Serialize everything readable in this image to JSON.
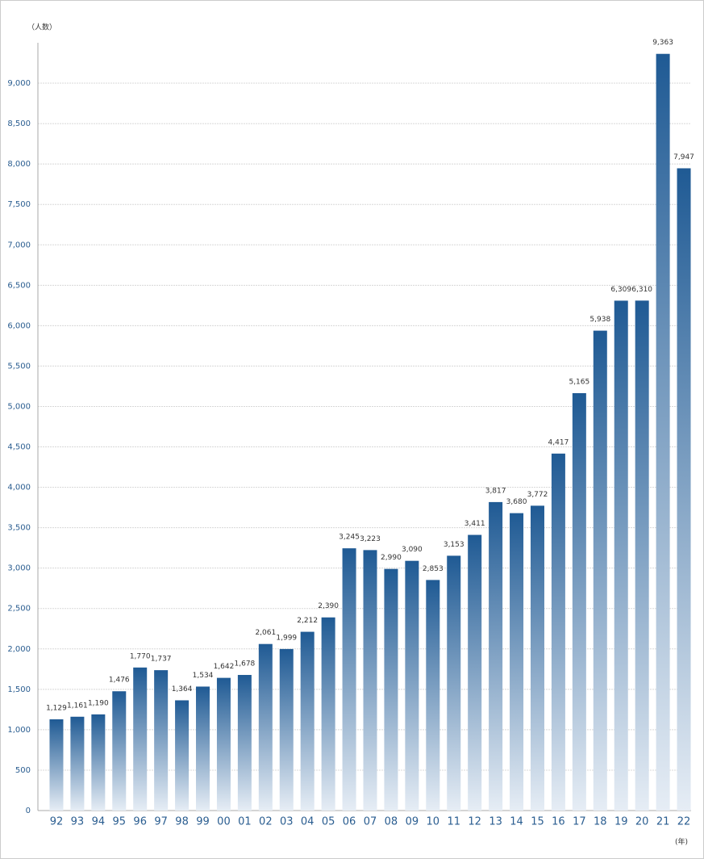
{
  "chart_data": {
    "type": "bar",
    "y_unit": "（人数）",
    "x_unit": "(年)",
    "categories": [
      "92",
      "93",
      "94",
      "95",
      "96",
      "97",
      "98",
      "99",
      "00",
      "01",
      "02",
      "03",
      "04",
      "05",
      "06",
      "07",
      "08",
      "09",
      "10",
      "11",
      "12",
      "13",
      "14",
      "15",
      "16",
      "17",
      "18",
      "19",
      "20",
      "21",
      "22"
    ],
    "values": [
      1129,
      1161,
      1190,
      1476,
      1770,
      1737,
      1364,
      1534,
      1642,
      1678,
      2061,
      1999,
      2212,
      2390,
      3245,
      3223,
      2990,
      3090,
      2853,
      3153,
      3411,
      3817,
      3680,
      3772,
      4417,
      5165,
      5938,
      6309,
      6310,
      9363,
      7947
    ],
    "value_labels": [
      "1,129",
      "1,161",
      "1,190",
      "1,476",
      "1,770",
      "1,737",
      "1,364",
      "1,534",
      "1,642",
      "1,678",
      "2,061",
      "1,999",
      "2,212",
      "2,390",
      "3,245",
      "3,223",
      "2,990",
      "3,090",
      "2,853",
      "3,153",
      "3,411",
      "3,817",
      "3,680",
      "3,772",
      "4,417",
      "5,165",
      "5,938",
      "6,309",
      "6,310",
      "9,363",
      "7,947"
    ],
    "color": "#1f5a94",
    "ylim": [
      0,
      9500
    ],
    "yticks": [
      0,
      500,
      {
        "value": 1000,
        "label": "1,000"
      },
      {
        "value": 1500,
        "label": "1,500"
      },
      {
        "value": 2000,
        "label": "2,000"
      },
      {
        "value": 2500,
        "label": "2,500"
      },
      {
        "value": 3000,
        "label": "3,000"
      },
      {
        "value": 3500,
        "label": "3,500"
      },
      {
        "value": 4000,
        "label": "4,000"
      },
      {
        "value": 4500,
        "label": "4,500"
      },
      {
        "value": 5000,
        "label": "5,000"
      },
      {
        "value": 5500,
        "label": "5,500"
      },
      {
        "value": 6000,
        "label": "6,000"
      },
      {
        "value": 6500,
        "label": "6,500"
      },
      {
        "value": 7000,
        "label": "7,000"
      },
      {
        "value": 7500,
        "label": "7,500"
      },
      {
        "value": 8000,
        "label": "8,000"
      },
      {
        "value": 8500,
        "label": "8,500"
      },
      {
        "value": 9000,
        "label": "9,000"
      }
    ],
    "grid": true
  }
}
